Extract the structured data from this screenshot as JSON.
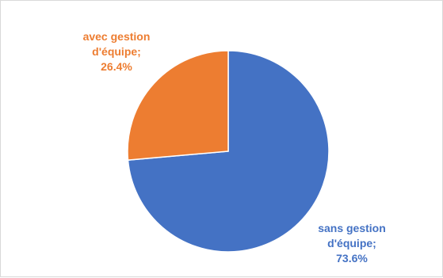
{
  "chart_data": {
    "type": "pie",
    "title": "",
    "slices": [
      {
        "name": "sans gestion d'équipe",
        "value": 73.6,
        "label_lines": [
          "sans gestion",
          "d'équipe;",
          "73.6%"
        ],
        "color": "#4472C4"
      },
      {
        "name": "avec gestion d'équipe",
        "value": 26.4,
        "label_lines": [
          "avec gestion",
          "d'équipe;",
          "26.4%"
        ],
        "color": "#ED7D31"
      }
    ],
    "legend": "none",
    "start_angle": "12 o'clock",
    "direction": "clockwise"
  }
}
